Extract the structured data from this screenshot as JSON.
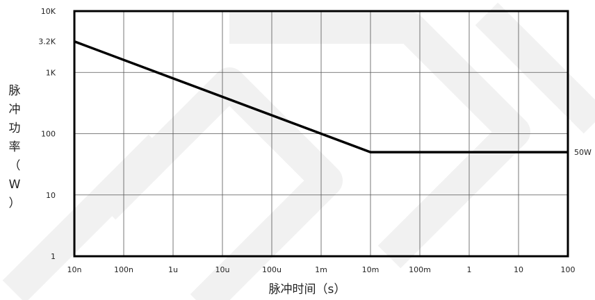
{
  "chart_data": {
    "type": "line",
    "xlabel": "脉冲时间（s）",
    "ylabel": "脉冲功率（W）",
    "ylabel_chars": [
      "脉",
      "冲",
      "功",
      "率",
      "（",
      "W",
      "）"
    ],
    "x_scale": "log",
    "y_scale": "log",
    "x_ticks": [
      {
        "value": 1e-08,
        "label": "10n"
      },
      {
        "value": 1e-07,
        "label": "100n"
      },
      {
        "value": 1e-06,
        "label": "1u"
      },
      {
        "value": 1e-05,
        "label": "10u"
      },
      {
        "value": 0.0001,
        "label": "100u"
      },
      {
        "value": 0.001,
        "label": "1m"
      },
      {
        "value": 0.01,
        "label": "10m"
      },
      {
        "value": 0.1,
        "label": "100m"
      },
      {
        "value": 1,
        "label": "1"
      },
      {
        "value": 10,
        "label": "10"
      },
      {
        "value": 100,
        "label": "100"
      }
    ],
    "y_ticks": [
      {
        "value": 1,
        "label": "1"
      },
      {
        "value": 10,
        "label": "10"
      },
      {
        "value": 100,
        "label": "100"
      },
      {
        "value": 1000,
        "label": "1K"
      },
      {
        "value": 3200,
        "label": "3.2K"
      },
      {
        "value": 10000,
        "label": "10K"
      }
    ],
    "xlim": [
      1e-08,
      100
    ],
    "ylim": [
      1,
      10000
    ],
    "grid": true,
    "series": [
      {
        "points": [
          {
            "x": 1e-08,
            "y": 3200
          },
          {
            "x": 0.01,
            "y": 50
          },
          {
            "x": 100,
            "y": 50
          }
        ],
        "color": "#000000"
      }
    ],
    "annotations": [
      {
        "text": "50W",
        "x": 100,
        "y": 50
      }
    ]
  }
}
